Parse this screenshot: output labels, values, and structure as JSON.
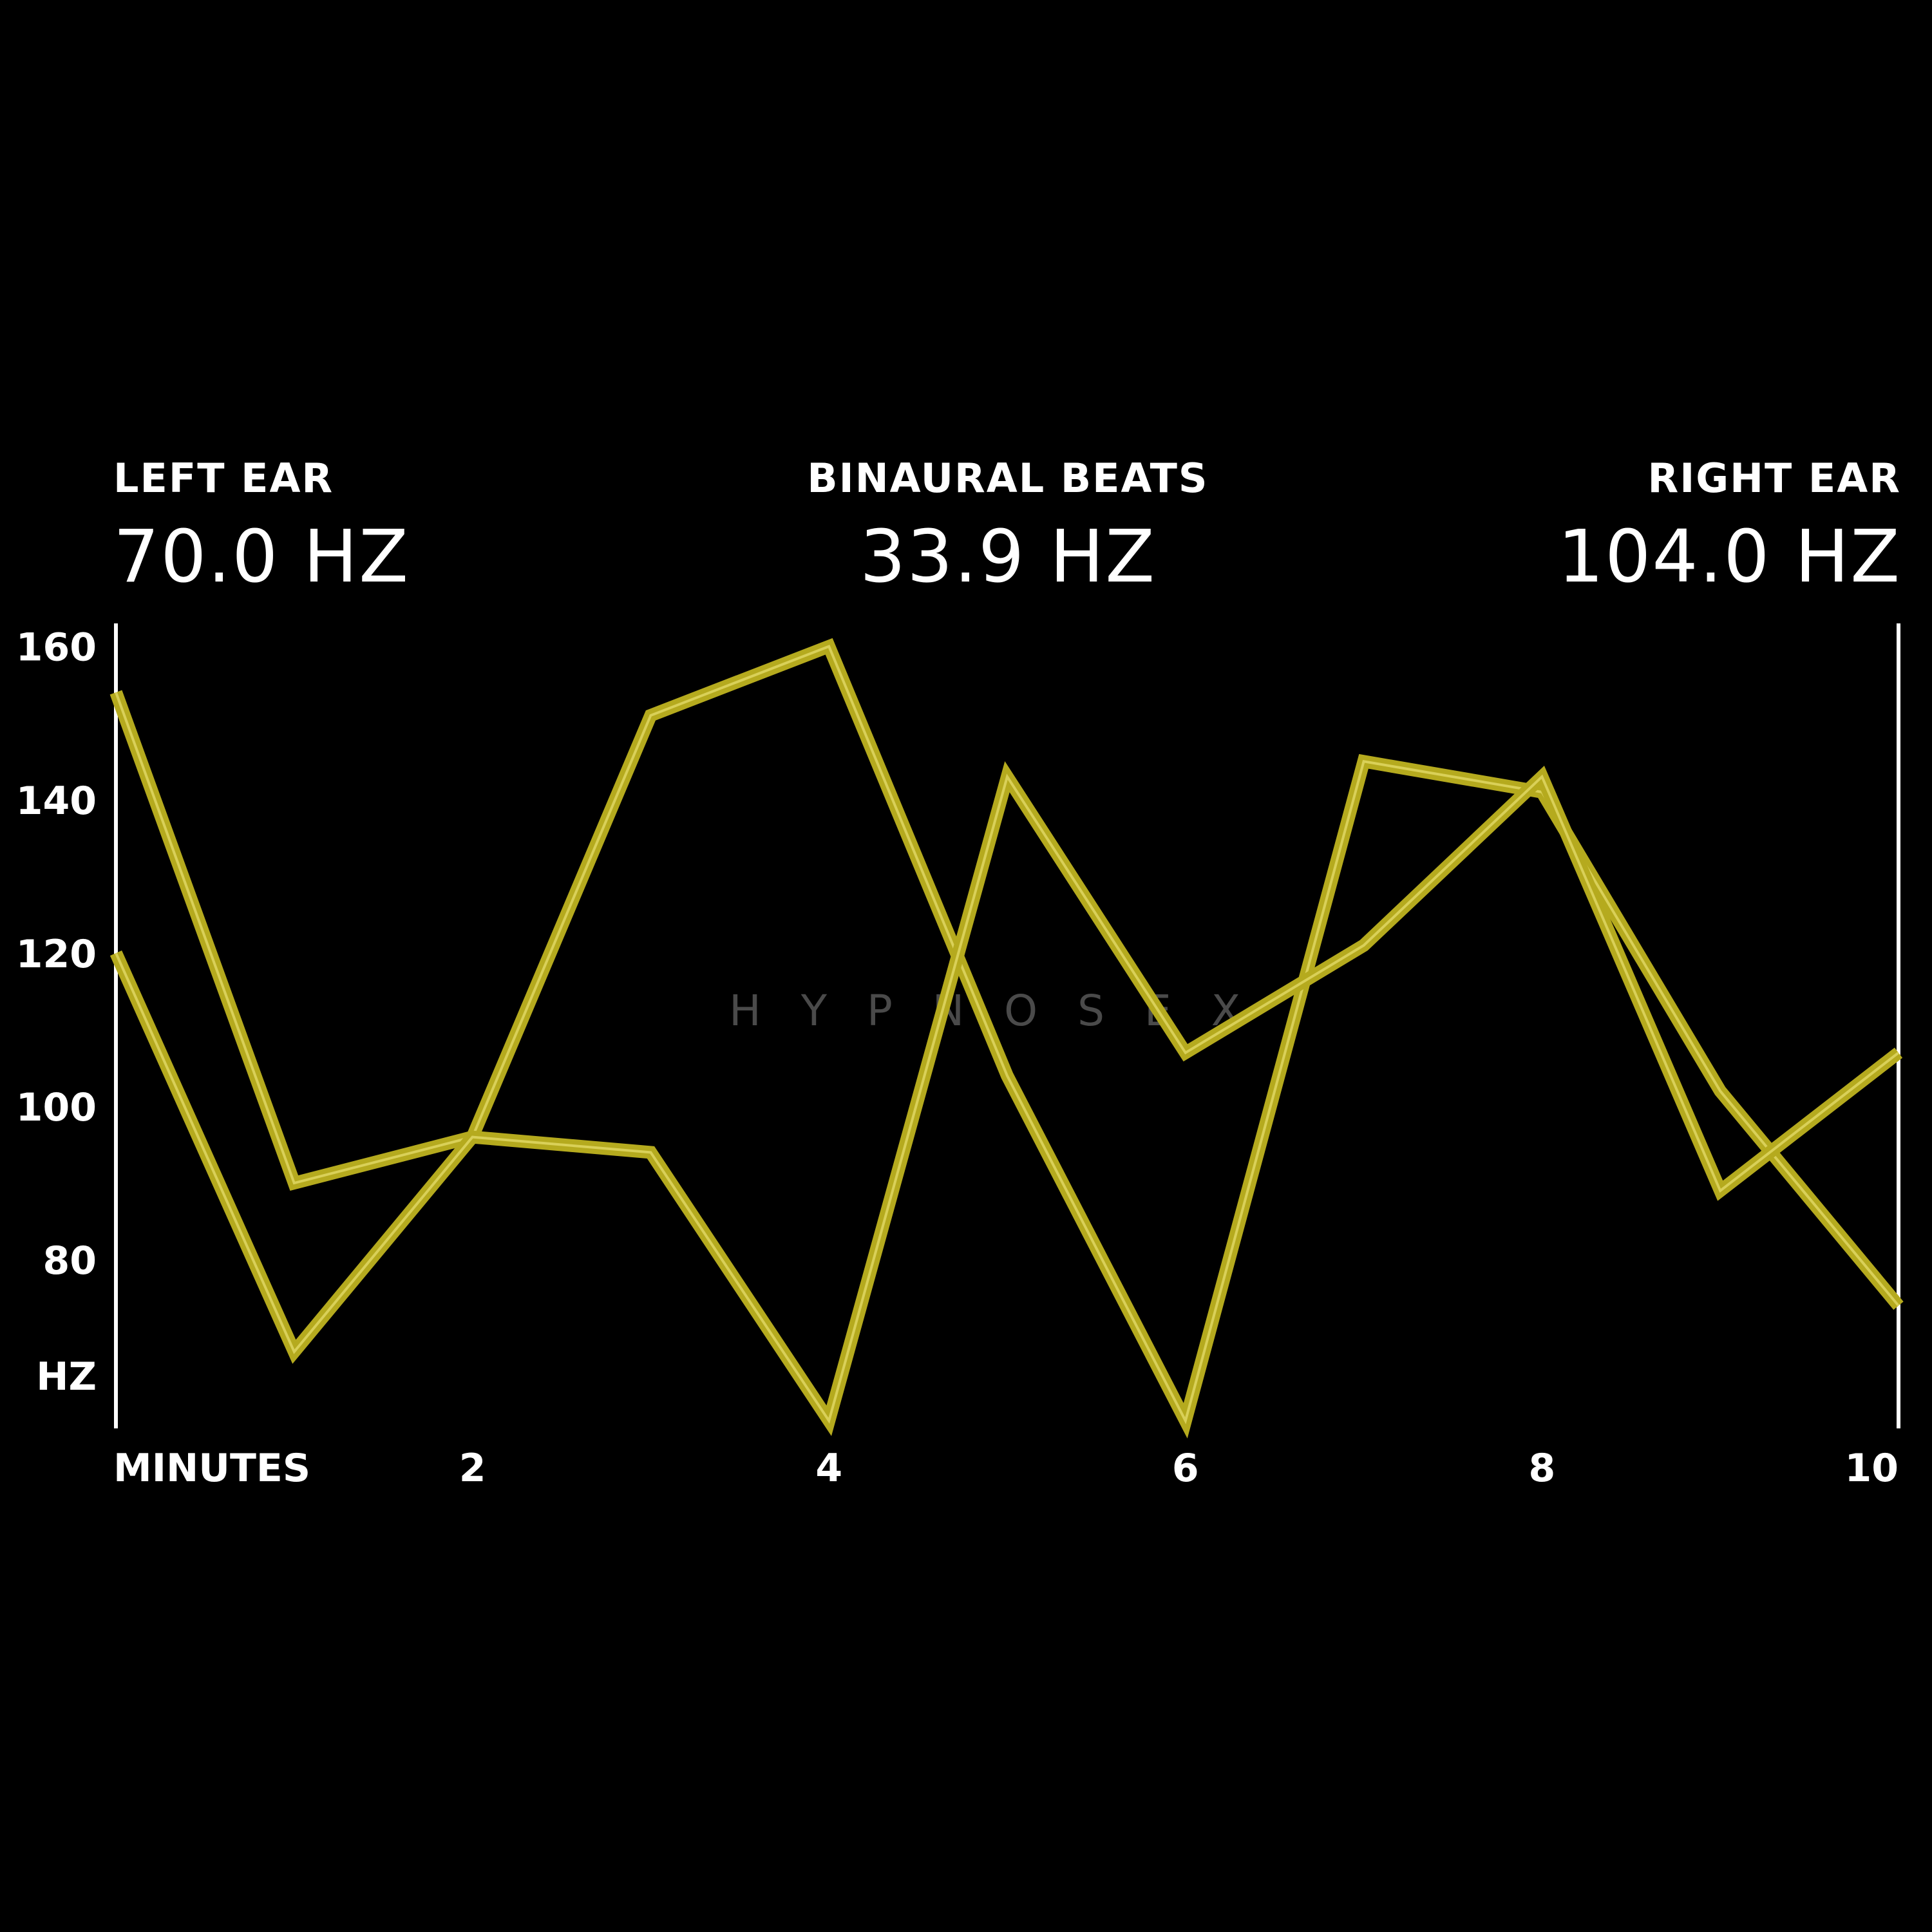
{
  "header": {
    "left_label": "LEFT EAR",
    "left_value": "70.0 HZ",
    "center_label": "BINAURAL BEATS",
    "center_value": "33.9 HZ",
    "right_label": "RIGHT EAR",
    "right_value": "104.0 HZ"
  },
  "watermark": "HYPNOSEX",
  "colors": {
    "background": "#000000",
    "text": "#ffffff",
    "series_line": "#b5aa1e",
    "series_highlight": "#e8e070",
    "axis": "#ffffff",
    "watermark": "#4a4a4a"
  },
  "chart_data": {
    "type": "line",
    "xlabel": "MINUTES",
    "ylabel": "HZ",
    "x_ticks": [
      2,
      4,
      6,
      8,
      10
    ],
    "y_ticks": [
      160,
      140,
      120,
      100,
      80
    ],
    "xlim": [
      0,
      10
    ],
    "ylim": [
      58,
      163
    ],
    "grid": false,
    "legend": "none",
    "series": [
      {
        "x": [
          0,
          1,
          2,
          3,
          4,
          5,
          6,
          7,
          8,
          9,
          10
        ],
        "y": [
          154,
          90,
          96,
          151,
          160,
          104,
          59,
          145,
          141,
          102,
          74
        ]
      },
      {
        "x": [
          0,
          1,
          2,
          3,
          4,
          5,
          6,
          7,
          8,
          9,
          10
        ],
        "y": [
          120,
          68,
          96,
          94,
          59,
          143,
          107,
          121,
          143,
          89,
          107
        ]
      }
    ]
  }
}
